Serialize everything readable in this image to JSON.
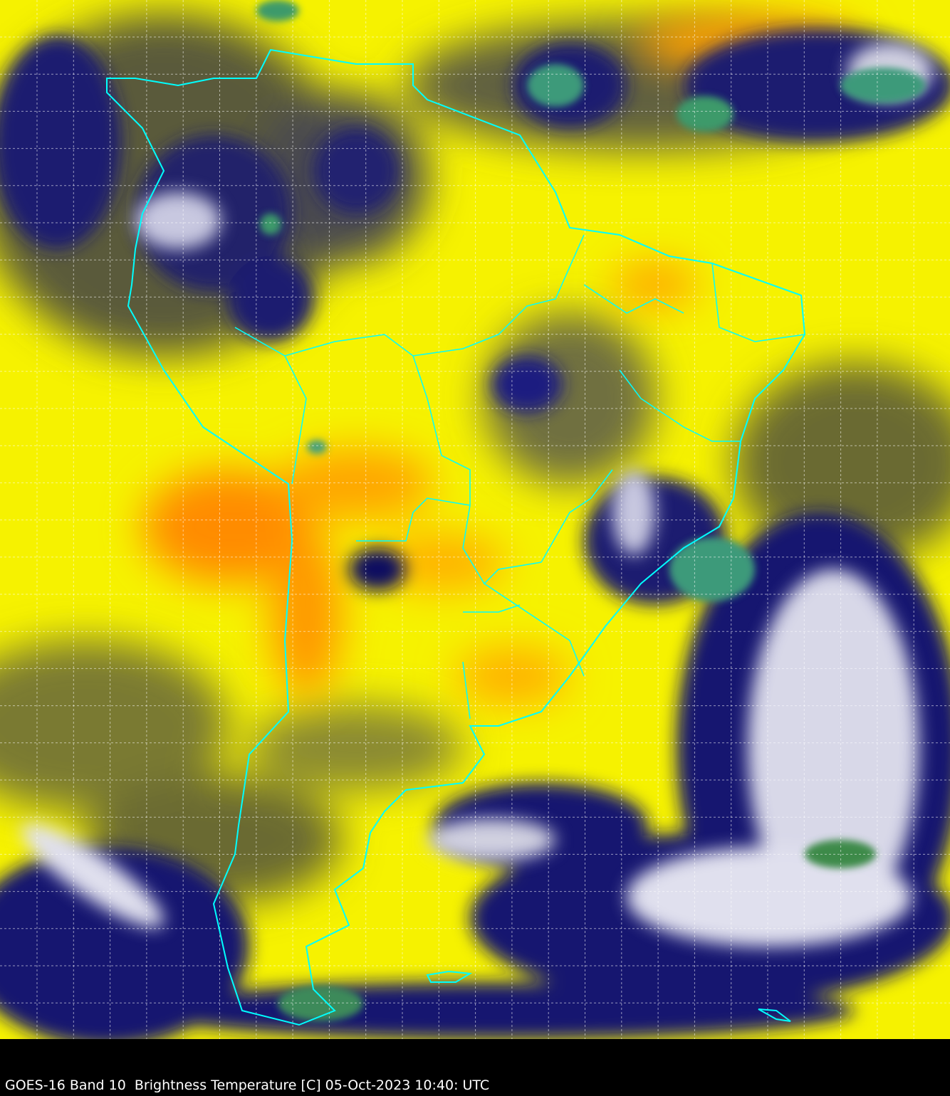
{
  "caption": "GOES-16 Band 10  Brightness Temperature [C] 05-Oct-2023 10:40: UTC",
  "colors": {
    "background": "#000000",
    "warm_dry": "#ffff00",
    "hot": "#ff8c00",
    "moist": "#6b6b2a",
    "cold_cloud": "#0a0a6e",
    "very_cold": "#ffffff",
    "coldest": "#3c9a6a",
    "coastline": "#00ffff",
    "grid": "#ffffff"
  },
  "grid": true
}
